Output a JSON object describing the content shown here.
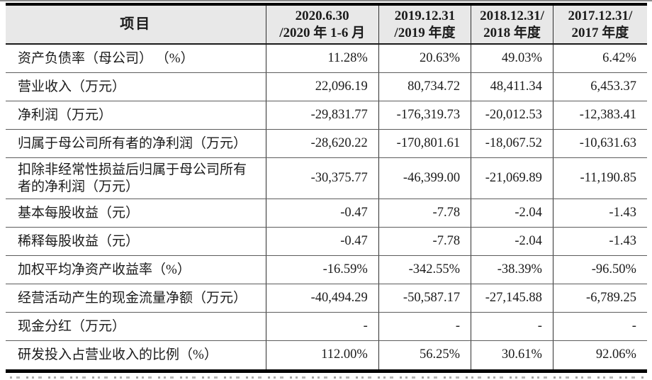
{
  "table": {
    "header": {
      "item_label": "项目",
      "columns": [
        {
          "line1": "2020.6.30",
          "line2": "/2020 年 1-6 月"
        },
        {
          "line1": "2019.12.31",
          "line2": "/2019 年度"
        },
        {
          "line1": "2018.12.31/",
          "line2": "2018 年度"
        },
        {
          "line1": "2017.12.31/",
          "line2": "2017 年度"
        }
      ]
    },
    "rows": [
      {
        "label": "资产负债率（母公司） （%）",
        "values": [
          "11.28%",
          "20.63%",
          "49.03%",
          "6.42%"
        ],
        "tall": false
      },
      {
        "label": "营业收入（万元）",
        "values": [
          "22,096.19",
          "80,734.72",
          "48,411.34",
          "6,453.37"
        ],
        "tall": false
      },
      {
        "label": "净利润（万元）",
        "values": [
          "-29,831.77",
          "-176,319.73",
          "-20,012.53",
          "-12,383.41"
        ],
        "tall": false
      },
      {
        "label": "归属于母公司所有者的净利润（万元）",
        "values": [
          "-28,620.22",
          "-170,801.61",
          "-18,067.52",
          "-10,631.63"
        ],
        "tall": false
      },
      {
        "label": "扣除非经常性损益后归属于母公司所有者的净利润（万元）",
        "values": [
          "-30,375.77",
          "-46,399.00",
          "-21,069.89",
          "-11,190.85"
        ],
        "tall": true
      },
      {
        "label": "基本每股收益（元）",
        "values": [
          "-0.47",
          "-7.78",
          "-2.04",
          "-1.43"
        ],
        "tall": false
      },
      {
        "label": "稀释每股收益（元）",
        "values": [
          "-0.47",
          "-7.78",
          "-2.04",
          "-1.43"
        ],
        "tall": false
      },
      {
        "label": "加权平均净资产收益率（%）",
        "values": [
          "-16.59%",
          "-342.55%",
          "-38.39%",
          "-96.50%"
        ],
        "tall": false
      },
      {
        "label": "经营活动产生的现金流量净额（万元）",
        "values": [
          "-40,494.29",
          "-50,587.17",
          "-27,145.88",
          "-6,789.25"
        ],
        "tall": false
      },
      {
        "label": "现金分红（万元）",
        "values": [
          "-",
          "-",
          "-",
          "-"
        ],
        "tall": false
      },
      {
        "label": "研发投入占营业收入的比例（%）",
        "values": [
          "112.00%",
          "56.25%",
          "30.61%",
          "92.06%"
        ],
        "tall": false
      }
    ],
    "colors": {
      "header_bg": "#e8e8e8",
      "text": "#1b1b1b",
      "thick_border": "#000000",
      "thin_rule": "#5c5c5c"
    }
  }
}
